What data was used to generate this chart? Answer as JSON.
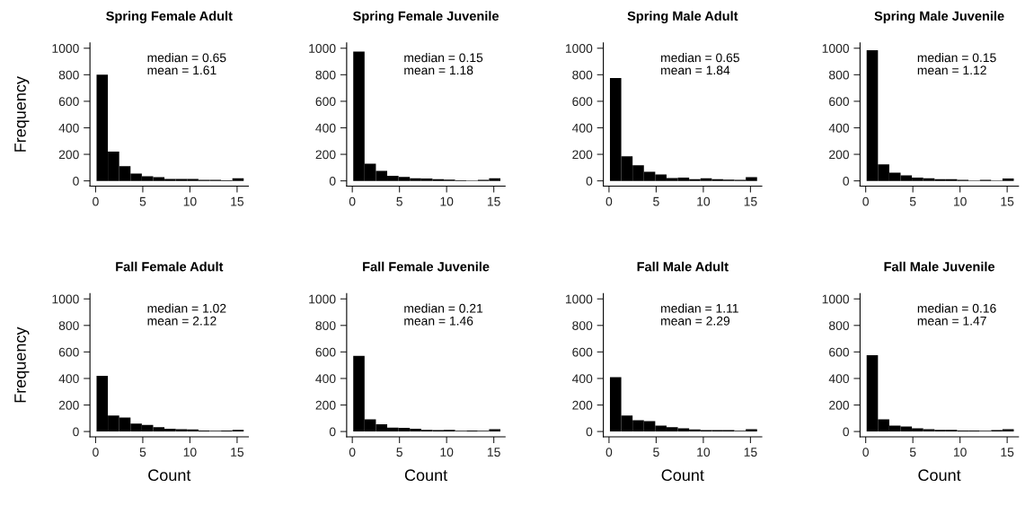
{
  "chart_data": [
    {
      "type": "histogram",
      "title": "Spring Female Adult",
      "ylabel": "Frequency",
      "annotations": [
        "median = 0.65\nmean = 1.61"
      ],
      "bins": [
        0.1,
        1.3,
        2.5,
        3.7,
        4.9,
        6.1,
        7.3,
        8.5,
        9.7,
        10.9,
        12.1,
        13.3,
        14.5,
        15.7
      ],
      "values": [
        800,
        220,
        110,
        55,
        35,
        28,
        15,
        15,
        15,
        8,
        8,
        5,
        20
      ],
      "color": "#000000",
      "xlim": [
        -0.6,
        16.2
      ],
      "xticks": [
        0,
        5,
        10,
        15
      ],
      "ylim": [
        -40,
        1040
      ],
      "yticks": [
        0,
        200,
        400,
        600,
        800,
        1000
      ],
      "grid": false
    },
    {
      "type": "histogram",
      "title": "Spring Female Juvenile",
      "annotations": [
        "median = 0.15\nmean = 1.18"
      ],
      "bins": [
        0.1,
        1.3,
        2.5,
        3.7,
        4.9,
        6.1,
        7.3,
        8.5,
        9.7,
        10.9,
        12.1,
        13.3,
        14.5,
        15.7
      ],
      "values": [
        975,
        130,
        75,
        38,
        30,
        20,
        17,
        13,
        10,
        5,
        3,
        8,
        20
      ],
      "color": "#000000",
      "xlim": [
        -0.6,
        16.2
      ],
      "xticks": [
        0,
        5,
        10,
        15
      ],
      "ylim": [
        -40,
        1040
      ],
      "yticks": [
        0,
        200,
        400,
        600,
        800,
        1000
      ],
      "grid": false
    },
    {
      "type": "histogram",
      "title": "Spring Male Adult",
      "annotations": [
        "median = 0.65\nmean = 1.84"
      ],
      "bins": [
        0.1,
        1.3,
        2.5,
        3.7,
        4.9,
        6.1,
        7.3,
        8.5,
        9.7,
        10.9,
        12.1,
        13.3,
        14.5,
        15.7
      ],
      "values": [
        775,
        185,
        118,
        68,
        48,
        22,
        25,
        13,
        20,
        12,
        10,
        8,
        28
      ],
      "color": "#000000",
      "xlim": [
        -0.6,
        16.2
      ],
      "xticks": [
        0,
        5,
        10,
        15
      ],
      "ylim": [
        -40,
        1040
      ],
      "yticks": [
        0,
        200,
        400,
        600,
        800,
        1000
      ],
      "grid": false
    },
    {
      "type": "histogram",
      "title": "Spring Male Juvenile",
      "annotations": [
        "median = 0.15\nmean = 1.12"
      ],
      "bins": [
        0.1,
        1.3,
        2.5,
        3.7,
        4.9,
        6.1,
        7.3,
        8.5,
        9.7,
        10.9,
        12.1,
        13.3,
        14.5,
        15.7
      ],
      "values": [
        985,
        125,
        62,
        42,
        25,
        20,
        12,
        13,
        8,
        3,
        8,
        3,
        18
      ],
      "color": "#000000",
      "xlim": [
        -0.6,
        16.2
      ],
      "xticks": [
        0,
        5,
        10,
        15
      ],
      "ylim": [
        -40,
        1040
      ],
      "yticks": [
        0,
        200,
        400,
        600,
        800,
        1000
      ],
      "grid": false
    },
    {
      "type": "histogram",
      "title": "Fall Female Adult",
      "xlabel": "Count",
      "ylabel": "Frequency",
      "annotations": [
        "median = 1.02\nmean = 2.12"
      ],
      "bins": [
        0.1,
        1.3,
        2.5,
        3.7,
        4.9,
        6.1,
        7.3,
        8.5,
        9.7,
        10.9,
        12.1,
        13.3,
        14.5,
        15.7
      ],
      "values": [
        420,
        120,
        105,
        60,
        50,
        33,
        20,
        18,
        15,
        8,
        5,
        8,
        12
      ],
      "color": "#000000",
      "xlim": [
        -0.6,
        16.2
      ],
      "xticks": [
        0,
        5,
        10,
        15
      ],
      "ylim": [
        -40,
        1040
      ],
      "yticks": [
        0,
        200,
        400,
        600,
        800,
        1000
      ],
      "grid": false
    },
    {
      "type": "histogram",
      "title": "Fall Female Juvenile",
      "xlabel": "Count",
      "annotations": [
        "median = 0.21\nmean = 1.46"
      ],
      "bins": [
        0.1,
        1.3,
        2.5,
        3.7,
        4.9,
        6.1,
        7.3,
        8.5,
        9.7,
        10.9,
        12.1,
        13.3,
        14.5,
        15.7
      ],
      "values": [
        570,
        92,
        55,
        30,
        28,
        20,
        12,
        10,
        12,
        5,
        8,
        5,
        18
      ],
      "color": "#000000",
      "xlim": [
        -0.6,
        16.2
      ],
      "xticks": [
        0,
        5,
        10,
        15
      ],
      "ylim": [
        -40,
        1040
      ],
      "yticks": [
        0,
        200,
        400,
        600,
        800,
        1000
      ],
      "grid": false
    },
    {
      "type": "histogram",
      "title": "Fall Male Adult",
      "xlabel": "Count",
      "annotations": [
        "median = 1.11\nmean = 2.29"
      ],
      "bins": [
        0.1,
        1.3,
        2.5,
        3.7,
        4.9,
        6.1,
        7.3,
        8.5,
        9.7,
        10.9,
        12.1,
        13.3,
        14.5,
        15.7
      ],
      "values": [
        410,
        120,
        85,
        78,
        45,
        33,
        25,
        15,
        10,
        10,
        10,
        5,
        18
      ],
      "color": "#000000",
      "xlim": [
        -0.6,
        16.2
      ],
      "xticks": [
        0,
        5,
        10,
        15
      ],
      "ylim": [
        -40,
        1040
      ],
      "yticks": [
        0,
        200,
        400,
        600,
        800,
        1000
      ],
      "grid": false
    },
    {
      "type": "histogram",
      "title": "Fall Male Juvenile",
      "xlabel": "Count",
      "annotations": [
        "median = 0.16\nmean = 1.47"
      ],
      "bins": [
        0.1,
        1.3,
        2.5,
        3.7,
        4.9,
        6.1,
        7.3,
        8.5,
        9.7,
        10.9,
        12.1,
        13.3,
        14.5,
        15.7
      ],
      "values": [
        575,
        92,
        45,
        38,
        25,
        18,
        12,
        12,
        8,
        8,
        5,
        10,
        18
      ],
      "color": "#000000",
      "xlim": [
        -0.6,
        16.2
      ],
      "xticks": [
        0,
        5,
        10,
        15
      ],
      "ylim": [
        -40,
        1040
      ],
      "yticks": [
        0,
        200,
        400,
        600,
        800,
        1000
      ],
      "grid": false
    }
  ]
}
